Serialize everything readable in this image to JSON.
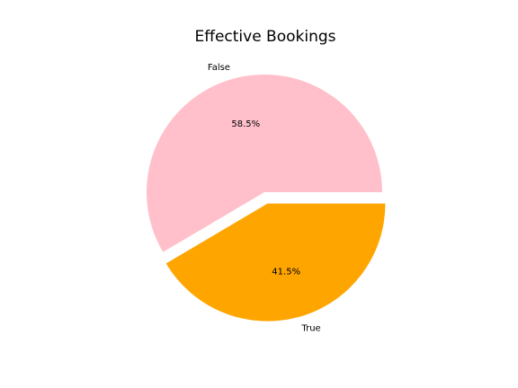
{
  "chart_data": {
    "type": "pie",
    "title": "Effective Bookings",
    "slices": [
      {
        "label": "False",
        "value": 58.5,
        "pct_label": "58.5%",
        "color": "#ffc0cb",
        "explode": 0.0
      },
      {
        "label": "True",
        "value": 41.5,
        "pct_label": "41.5%",
        "color": "#ffa500",
        "explode": 0.1
      }
    ],
    "start_angle": 0,
    "direction": "counterclockwise",
    "legend": "none"
  }
}
